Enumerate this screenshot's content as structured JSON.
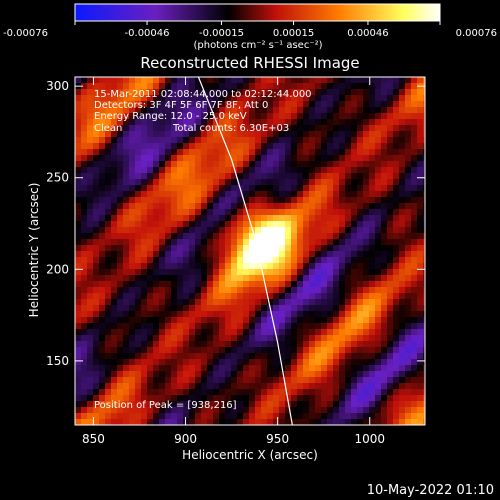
{
  "chart_data": {
    "type": "heatmap",
    "title": "Reconstructed RHESSI Image",
    "xlabel": "Heliocentric X (arcsec)",
    "ylabel": "Heliocentric Y (arcsec)",
    "xlim": [
      840,
      1030
    ],
    "ylim": [
      115,
      305
    ],
    "xticks": [
      "850",
      "900",
      "950",
      "1000"
    ],
    "yticks": [
      "150",
      "200",
      "250",
      "300"
    ],
    "colorbar": {
      "unit_label": "(photons cm⁻² s⁻¹ asec⁻²)",
      "ticks": [
        "-0.00076",
        "-0.00046",
        "-0.00015",
        "0.00015",
        "0.00046",
        "0.00076"
      ],
      "range": [
        -0.00076,
        0.00076
      ],
      "colors": [
        "#0a1aff",
        "#6a1fc0",
        "#000000",
        "#c0100a",
        "#ff7a00",
        "#ffff60",
        "#ffffff"
      ]
    },
    "annotations": [
      "15-Mar-2011 02:08:44.000 to 02:12:44.000",
      "Detectors: 3F 4F 5F 6F 7F 8F, Att 0",
      "Energy Range: 12.0 - 25.0 keV",
      "Clean",
      "Total counts: 6.30E+03"
    ],
    "peak_label": "Position of Peak = [938,216]",
    "peak": {
      "x": 938,
      "y": 216
    },
    "limb_curve": [
      [
        907,
        305
      ],
      [
        925,
        260
      ],
      [
        938,
        216
      ],
      [
        950,
        160
      ],
      [
        958,
        115
      ]
    ],
    "grid": false
  },
  "footer": {
    "date": "10-May-2022 01:10"
  }
}
